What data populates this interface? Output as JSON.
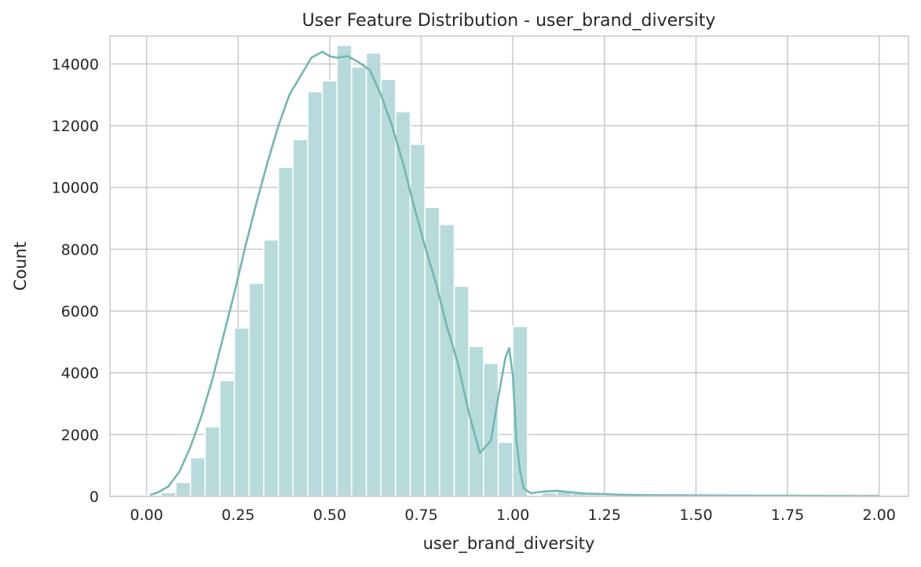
{
  "chart_data": {
    "type": "histogram",
    "title": "User Feature Distribution - user_brand_diversity",
    "xlabel": "user_brand_diversity",
    "ylabel": "Count",
    "xlim": [
      -0.1,
      2.08
    ],
    "ylim": [
      0,
      14900
    ],
    "xticks": [
      0.0,
      0.25,
      0.5,
      0.75,
      1.0,
      1.25,
      1.5,
      1.75,
      2.0
    ],
    "xtick_labels": [
      "0.00",
      "0.25",
      "0.50",
      "0.75",
      "1.00",
      "1.25",
      "1.50",
      "1.75",
      "2.00"
    ],
    "yticks": [
      0,
      2000,
      4000,
      6000,
      8000,
      10000,
      12000,
      14000
    ],
    "ytick_labels": [
      "0",
      "2000",
      "4000",
      "6000",
      "8000",
      "10000",
      "12000",
      "14000"
    ],
    "grid": true,
    "colors": {
      "bar": "#b7dbda",
      "kde": "#72b7b0",
      "grid": "#cccccc"
    },
    "bin_width": 0.04,
    "bin_start": 0.0,
    "counts": [
      20,
      120,
      450,
      1250,
      2250,
      3750,
      5450,
      6900,
      8300,
      10650,
      11550,
      13100,
      13450,
      14600,
      13900,
      14350,
      13500,
      12450,
      11400,
      9350,
      8800,
      6800,
      4850,
      4300,
      1750,
      5500,
      40,
      120,
      150,
      100,
      60,
      40,
      30,
      20,
      20,
      10,
      10,
      10,
      10,
      10,
      10,
      10,
      10,
      10,
      10,
      10,
      5,
      5,
      5,
      5
    ],
    "kde": {
      "x": [
        0.01,
        0.03,
        0.06,
        0.09,
        0.12,
        0.15,
        0.18,
        0.21,
        0.24,
        0.27,
        0.3,
        0.33,
        0.36,
        0.39,
        0.42,
        0.45,
        0.48,
        0.5,
        0.52,
        0.55,
        0.58,
        0.61,
        0.64,
        0.67,
        0.7,
        0.73,
        0.76,
        0.79,
        0.82,
        0.85,
        0.88,
        0.91,
        0.94,
        0.96,
        0.98,
        0.99,
        1.0,
        1.01,
        1.02,
        1.03,
        1.05,
        1.08,
        1.12,
        1.16,
        1.2,
        1.25,
        1.3,
        1.35,
        1.5,
        1.75,
        2.0
      ],
      "y": [
        50,
        120,
        320,
        800,
        1600,
        2600,
        3800,
        5200,
        6600,
        8100,
        9500,
        10800,
        12000,
        13000,
        13600,
        14200,
        14400,
        14250,
        14200,
        14250,
        14050,
        13800,
        13000,
        12000,
        10800,
        9400,
        8100,
        6900,
        5500,
        4300,
        2700,
        1400,
        1800,
        3200,
        4500,
        4800,
        3900,
        1800,
        800,
        250,
        100,
        150,
        180,
        130,
        90,
        70,
        50,
        40,
        30,
        20,
        10
      ]
    }
  }
}
